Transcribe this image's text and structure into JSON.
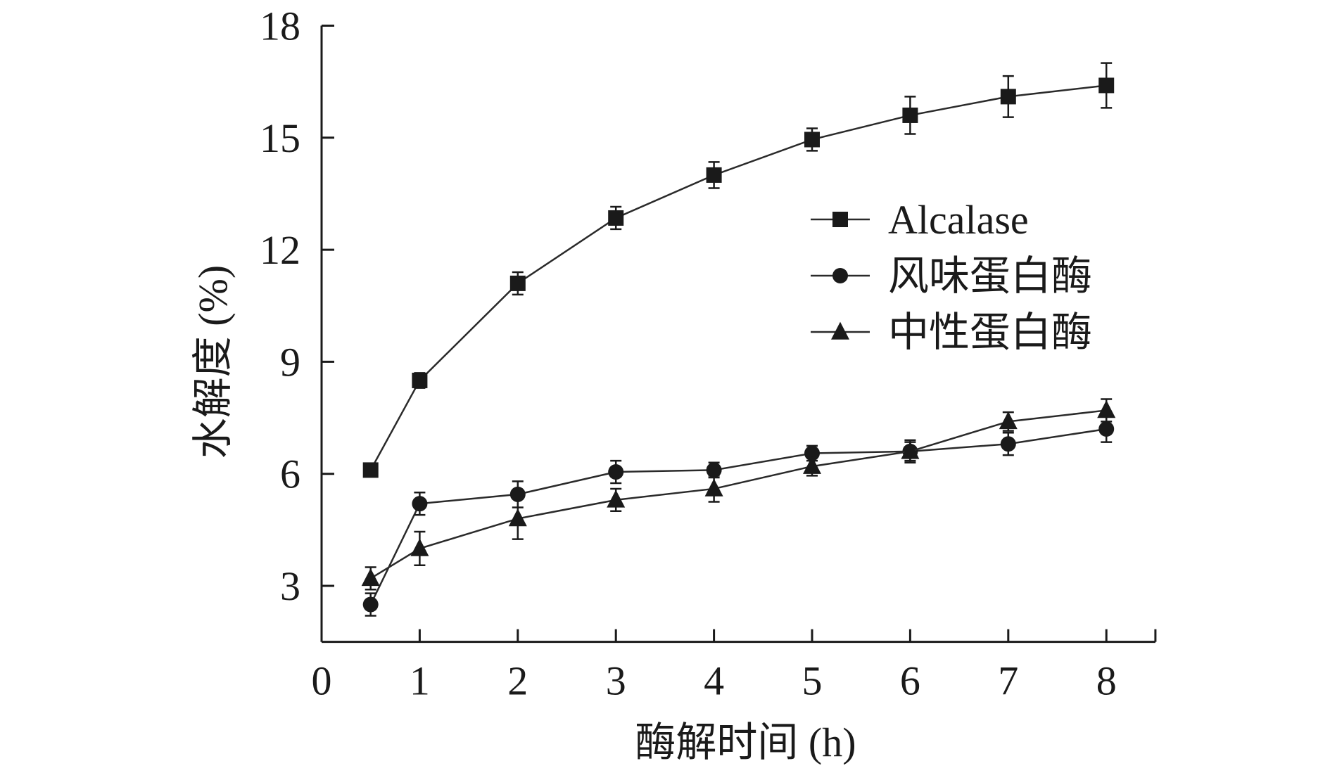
{
  "chart_data": {
    "type": "line",
    "title": "",
    "xlabel": "酶解时间 (h)",
    "ylabel": "水解度 (%)",
    "xlim": [
      0,
      8.5
    ],
    "ylim": [
      1.5,
      18
    ],
    "xticks": [
      0,
      1,
      2,
      3,
      4,
      5,
      6,
      7,
      8
    ],
    "yticks": [
      3,
      6,
      9,
      12,
      15,
      18
    ],
    "grid": false,
    "legend_position": "right-center",
    "series": [
      {
        "name": "Alcalase",
        "marker": "square",
        "points": [
          {
            "x": 0.5,
            "y": 6.1,
            "err": 0.15
          },
          {
            "x": 1,
            "y": 8.5,
            "err": 0.2
          },
          {
            "x": 2,
            "y": 11.1,
            "err": 0.3
          },
          {
            "x": 3,
            "y": 12.85,
            "err": 0.3
          },
          {
            "x": 4,
            "y": 14.0,
            "err": 0.35
          },
          {
            "x": 5,
            "y": 14.95,
            "err": 0.3
          },
          {
            "x": 6,
            "y": 15.6,
            "err": 0.5
          },
          {
            "x": 7,
            "y": 16.1,
            "err": 0.55
          },
          {
            "x": 8,
            "y": 16.4,
            "err": 0.6
          }
        ]
      },
      {
        "name": "风味蛋白酶",
        "marker": "circle",
        "points": [
          {
            "x": 0.5,
            "y": 2.5,
            "err": 0.3
          },
          {
            "x": 1,
            "y": 5.2,
            "err": 0.3
          },
          {
            "x": 2,
            "y": 5.45,
            "err": 0.35
          },
          {
            "x": 3,
            "y": 6.05,
            "err": 0.3
          },
          {
            "x": 4,
            "y": 6.1,
            "err": 0.2
          },
          {
            "x": 5,
            "y": 6.55,
            "err": 0.2
          },
          {
            "x": 6,
            "y": 6.6,
            "err": 0.3
          },
          {
            "x": 7,
            "y": 6.8,
            "err": 0.3
          },
          {
            "x": 8,
            "y": 7.2,
            "err": 0.35
          }
        ]
      },
      {
        "name": "中性蛋白酶",
        "marker": "triangle",
        "points": [
          {
            "x": 0.5,
            "y": 3.2,
            "err": 0.3
          },
          {
            "x": 1,
            "y": 4.0,
            "err": 0.45
          },
          {
            "x": 2,
            "y": 4.8,
            "err": 0.55
          },
          {
            "x": 3,
            "y": 5.3,
            "err": 0.3
          },
          {
            "x": 4,
            "y": 5.6,
            "err": 0.35
          },
          {
            "x": 5,
            "y": 6.2,
            "err": 0.25
          },
          {
            "x": 6,
            "y": 6.6,
            "err": 0.25
          },
          {
            "x": 7,
            "y": 7.4,
            "err": 0.25
          },
          {
            "x": 8,
            "y": 7.7,
            "err": 0.3
          }
        ]
      }
    ]
  }
}
